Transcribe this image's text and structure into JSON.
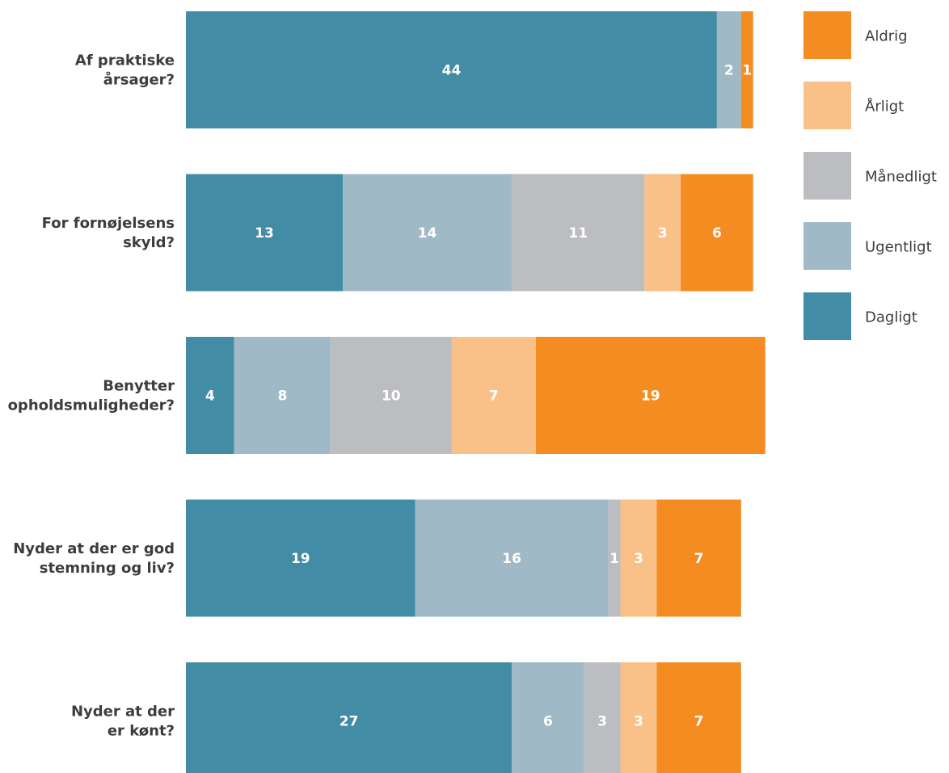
{
  "chart_data": {
    "type": "bar",
    "orientation": "horizontal",
    "stacked": true,
    "categories": [
      [
        "Af praktiske",
        "årsager?"
      ],
      [
        "For fornøjelsens",
        "skyld?"
      ],
      [
        "Benytter",
        "opholdsmuligheder?"
      ],
      [
        "Nyder at der er god",
        "stemning og liv?"
      ],
      [
        "Nyder at der",
        "er kønt?"
      ]
    ],
    "series": [
      {
        "name": "Dagligt",
        "color": "#428ca5",
        "values": [
          44,
          13,
          4,
          19,
          27
        ]
      },
      {
        "name": "Ugentligt",
        "color": "#9fbac6",
        "values": [
          2,
          14,
          8,
          16,
          6
        ]
      },
      {
        "name": "Månedligt",
        "color": "#bcbdc0",
        "values": [
          0,
          11,
          10,
          1,
          3
        ]
      },
      {
        "name": "Årligt",
        "color": "#f9c188",
        "values": [
          0,
          3,
          7,
          3,
          3
        ]
      },
      {
        "name": "Aldrig",
        "color": "#f48c22",
        "values": [
          1,
          6,
          19,
          7,
          7
        ]
      }
    ],
    "legend_order": [
      "Aldrig",
      "Årligt",
      "Månedligt",
      "Ugentligt",
      "Dagligt"
    ],
    "legend_position": "right",
    "grid": false,
    "xlim": [
      0,
      48
    ]
  }
}
